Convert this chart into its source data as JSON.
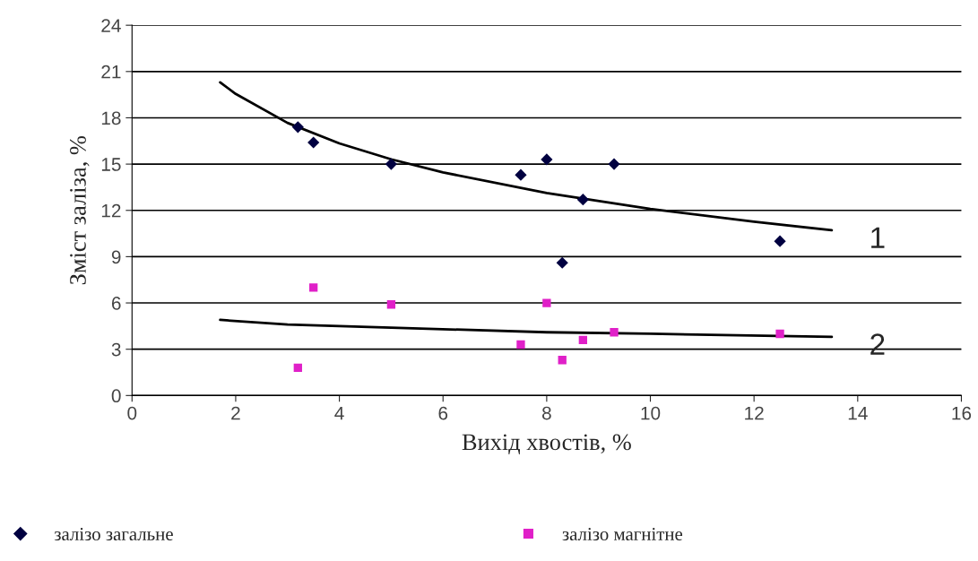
{
  "chart_data": {
    "type": "scatter",
    "xlabel": "Вихід хвостів, %",
    "ylabel": "Зміст заліза, %",
    "xlim": [
      0,
      16
    ],
    "xticks": [
      0,
      2,
      4,
      6,
      8,
      10,
      12,
      14,
      16
    ],
    "ylim": [
      0,
      24
    ],
    "yticks": [
      0,
      3,
      6,
      9,
      12,
      15,
      18,
      21,
      24
    ],
    "grid": "y",
    "legend": "bottom",
    "series": [
      {
        "name": "залізо загальне",
        "marker": "diamond",
        "color": "#000040",
        "x": [
          3.2,
          3.5,
          5,
          7.5,
          8,
          8.3,
          8.7,
          9.3,
          12.5
        ],
        "values": [
          17.4,
          16.4,
          15.0,
          14.3,
          15.3,
          8.6,
          12.7,
          15.0,
          10.0
        ]
      },
      {
        "name": "залізо магнітне",
        "marker": "square",
        "color": "#e020c8",
        "x": [
          3.2,
          3.5,
          5,
          7.5,
          8,
          8.3,
          8.7,
          9.3,
          12.5
        ],
        "values": [
          1.8,
          7.0,
          5.9,
          3.3,
          6.0,
          2.3,
          3.6,
          4.1,
          4.0
        ]
      },
      {
        "type": "line",
        "color": "#000000",
        "x": [
          1.7,
          2,
          3,
          4,
          5,
          6,
          8,
          10,
          12,
          13.5
        ],
        "values": [
          20.3,
          19.55,
          17.67,
          16.34,
          15.31,
          14.46,
          13.13,
          12.1,
          11.26,
          10.71
        ]
      },
      {
        "type": "line",
        "color": "#000000",
        "x": [
          1.7,
          3,
          5,
          8,
          10,
          13.5
        ],
        "values": [
          4.9,
          4.6,
          4.4,
          4.1,
          4.0,
          3.8
        ]
      }
    ],
    "annotations": [
      {
        "text": "1",
        "x": 13.5,
        "y": 10.71
      },
      {
        "text": "2",
        "x": 13.5,
        "y": 3.8
      }
    ]
  }
}
